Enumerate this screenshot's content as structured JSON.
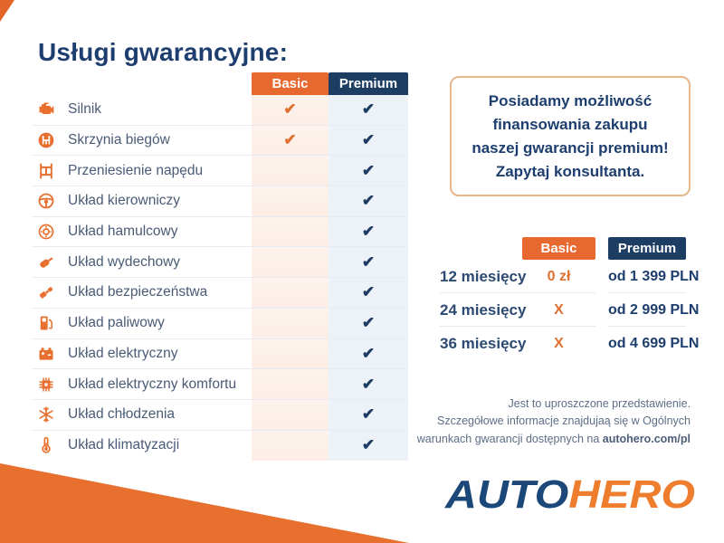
{
  "page": {
    "title": "Usługi gwarancyjne:",
    "accent_orange": "#e8702f",
    "navy": "#1d3d63"
  },
  "services_table": {
    "columns": {
      "basic": "Basic",
      "premium": "Premium"
    },
    "check_symbol": "✔",
    "rows": [
      {
        "icon": "engine-icon",
        "label": "Silnik",
        "basic": true,
        "premium": true
      },
      {
        "icon": "gearbox-icon",
        "label": "Skrzynia biegów",
        "basic": true,
        "premium": true
      },
      {
        "icon": "drivetrain-icon",
        "label": "Przeniesienie napędu",
        "basic": false,
        "premium": true
      },
      {
        "icon": "steering-icon",
        "label": "Układ kierowniczy",
        "basic": false,
        "premium": true
      },
      {
        "icon": "brake-icon",
        "label": "Układ hamulcowy",
        "basic": false,
        "premium": true
      },
      {
        "icon": "exhaust-icon",
        "label": "Układ wydechowy",
        "basic": false,
        "premium": true
      },
      {
        "icon": "seatbelt-icon",
        "label": "Układ bezpieczeństwa",
        "basic": false,
        "premium": true
      },
      {
        "icon": "fuel-icon",
        "label": "Układ paliwowy",
        "basic": false,
        "premium": true
      },
      {
        "icon": "battery-icon",
        "label": "Układ elektryczny",
        "basic": false,
        "premium": true
      },
      {
        "icon": "chip-icon",
        "label": "Układ elektryczny komfortu",
        "basic": false,
        "premium": true
      },
      {
        "icon": "snowflake-icon",
        "label": "Układ chłodzenia",
        "basic": false,
        "premium": true
      },
      {
        "icon": "thermometer-icon",
        "label": "Układ klimatyzacji",
        "basic": false,
        "premium": true
      }
    ]
  },
  "promo_box": {
    "lines": [
      "Posiadamy możliwość",
      "finansowania zakupu",
      "naszej gwarancji premium!",
      "Zapytaj konsultanta."
    ]
  },
  "pricing_table": {
    "columns": {
      "basic": "Basic",
      "premium": "Premium"
    },
    "rows": [
      {
        "period": "12 miesięcy",
        "basic": "0 zł",
        "premium": "od 1 399 PLN"
      },
      {
        "period": "24 miesięcy",
        "basic": "X",
        "premium": "od 2 999 PLN"
      },
      {
        "period": "36 miesięcy",
        "basic": "X",
        "premium": "od 4 699 PLN"
      }
    ]
  },
  "footnote": {
    "line1": "Jest to uproszczone przedstawienie.",
    "line2": "Szczegółowe informacje znajdujaą się w Ogólnych",
    "line3_prefix": "warunkach gwarancji dostępnych na ",
    "line3_bold": "autohero.com/pl"
  },
  "logo": {
    "part1": "AUTO",
    "part2": "HERO"
  }
}
